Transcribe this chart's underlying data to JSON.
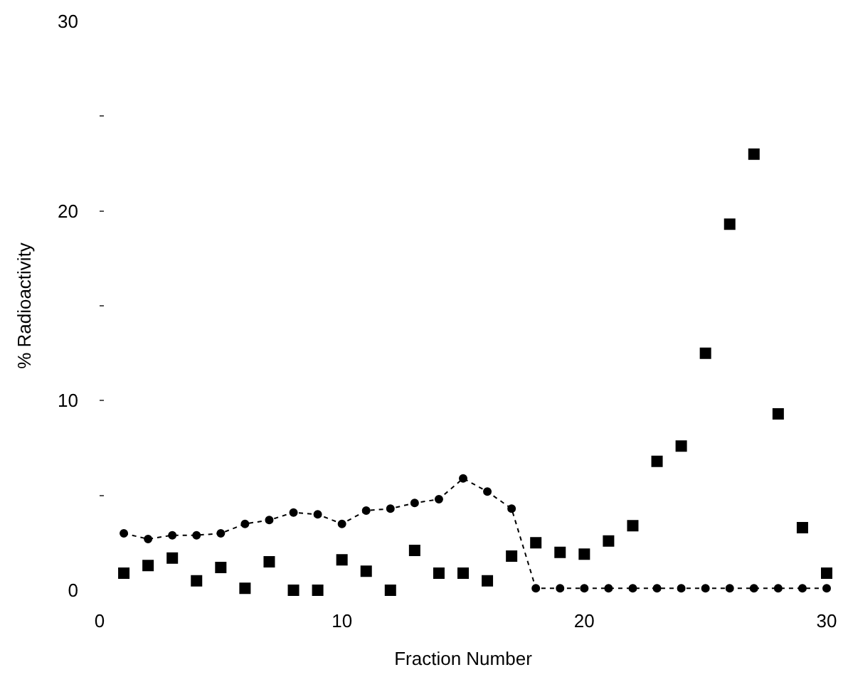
{
  "chart_data": {
    "type": "scatter",
    "xlabel": "Fraction Number",
    "ylabel": "% Radioactivity",
    "x": [
      1,
      2,
      3,
      4,
      5,
      6,
      7,
      8,
      9,
      10,
      11,
      12,
      13,
      14,
      15,
      16,
      17,
      18,
      19,
      20,
      21,
      22,
      23,
      24,
      25,
      26,
      27,
      28,
      29,
      30
    ],
    "series": [
      {
        "color": "#000000",
        "type": "line",
        "marker": "circle",
        "line_style": "dotted",
        "values": [
          3.0,
          2.7,
          2.9,
          2.9,
          3.0,
          3.5,
          3.7,
          4.1,
          4.0,
          3.5,
          4.2,
          4.3,
          4.6,
          4.8,
          5.9,
          5.2,
          4.3,
          0.1,
          0.1,
          0.1,
          0.1,
          0.1,
          0.1,
          0.1,
          0.1,
          0.1,
          0.1,
          0.1,
          0.1,
          0.1
        ]
      },
      {
        "color": "#000000",
        "marker": "square",
        "values": [
          0.9,
          1.3,
          1.7,
          0.5,
          1.2,
          0.1,
          1.5,
          0.0,
          0.0,
          1.6,
          1.0,
          0.0,
          2.1,
          0.9,
          0.9,
          0.5,
          1.8,
          2.5,
          2.0,
          1.9,
          2.6,
          3.4,
          6.8,
          7.6,
          12.5,
          19.3,
          23.0,
          9.3,
          3.3,
          0.9
        ]
      }
    ],
    "xlim": [
      0,
      30
    ],
    "xticks": [
      0,
      10,
      20,
      30
    ],
    "ylim": [
      0,
      30
    ],
    "yticks": [
      0,
      {
        "value": 5,
        "label": null
      },
      10,
      {
        "value": 15,
        "label": null
      },
      20,
      {
        "value": 25,
        "label": null
      },
      30
    ],
    "legend": false
  }
}
